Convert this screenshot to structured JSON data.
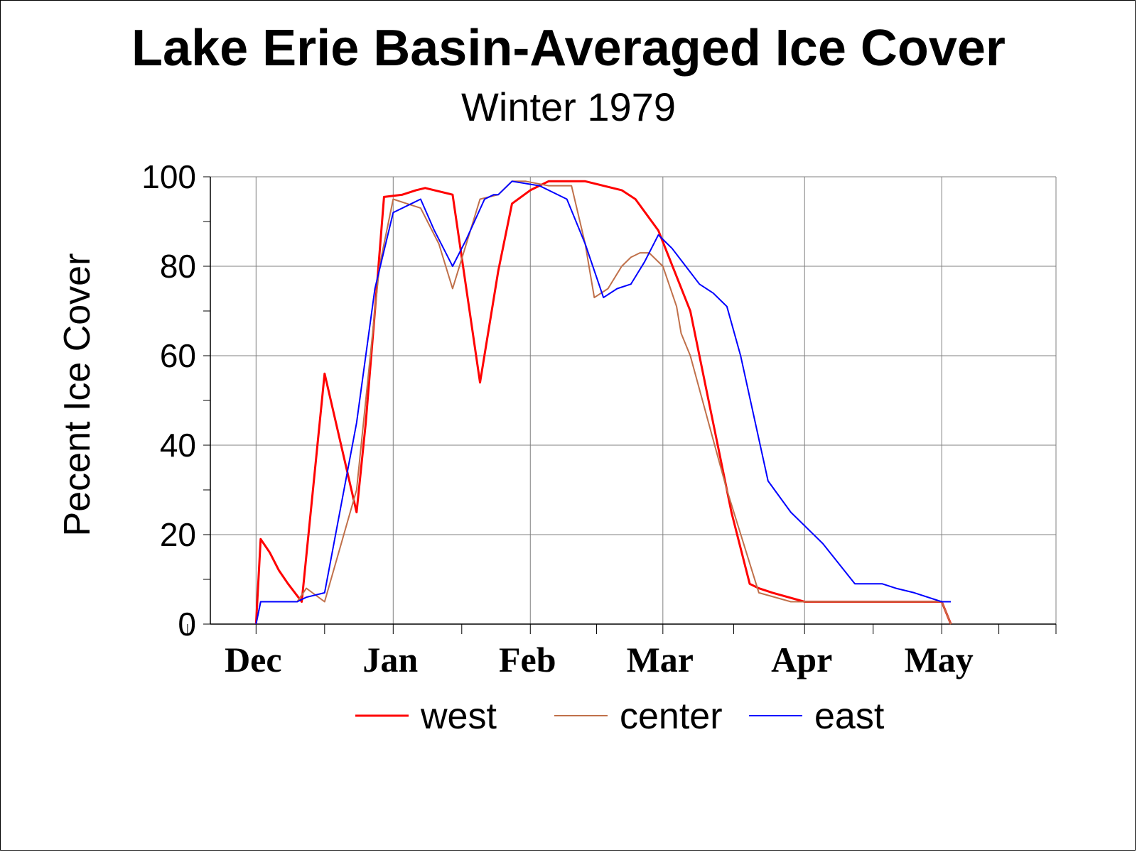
{
  "chart_data": {
    "type": "line",
    "title": "Lake Erie Basin-Averaged Ice Cover",
    "subtitle": "Winter 1979",
    "xlabel": "",
    "ylabel": "Pecent Ice Cover",
    "xlim": [
      -10,
      175
    ],
    "ylim": [
      0,
      100
    ],
    "y_ticks": [
      0,
      20,
      40,
      60,
      80,
      100
    ],
    "x_ticks": [
      {
        "label": "Dec",
        "x": 0
      },
      {
        "label": "Jan",
        "x": 30
      },
      {
        "label": "Feb",
        "x": 60
      },
      {
        "label": "Mar",
        "x": 89
      },
      {
        "label": "Apr",
        "x": 120
      },
      {
        "label": "May",
        "x": 150
      }
    ],
    "grid": true,
    "legend_position": "bottom",
    "series": [
      {
        "name": "west",
        "color": "#ff0000",
        "width": 3,
        "x": [
          0,
          1,
          3,
          5,
          7,
          10,
          15,
          22,
          24,
          26,
          28,
          32,
          35,
          37,
          43,
          49,
          53,
          56,
          60,
          64,
          69,
          72,
          80,
          83,
          88,
          95,
          99,
          101,
          104,
          108,
          110,
          113,
          120,
          126,
          135,
          140,
          150,
          152
        ],
        "y": [
          0,
          19,
          16,
          12,
          9,
          5,
          56,
          25,
          45,
          70,
          95.5,
          96,
          97,
          97.5,
          96,
          54,
          79,
          94,
          97,
          99,
          99,
          99,
          97,
          95,
          88,
          70,
          50,
          40,
          25,
          9,
          8,
          7,
          5,
          5,
          5,
          5,
          5,
          0
        ]
      },
      {
        "name": "center",
        "color": "#c0704a",
        "width": 2,
        "x": [
          0,
          1,
          5,
          9,
          11,
          15,
          22,
          24,
          27,
          30,
          33,
          36,
          40,
          43,
          46,
          49,
          53,
          56,
          59,
          64,
          69,
          72,
          74,
          77,
          80,
          82,
          84,
          86,
          89,
          92,
          93,
          95,
          99,
          103,
          110,
          117,
          120,
          125,
          130,
          135,
          140,
          145,
          150,
          152
        ],
        "y": [
          0,
          5,
          5,
          5,
          8,
          5,
          30,
          50,
          80,
          95,
          94,
          93,
          85,
          75,
          85,
          95,
          96,
          99,
          99,
          98,
          98,
          85,
          73,
          75,
          80,
          82,
          83,
          83,
          80,
          71,
          65,
          60,
          45,
          30,
          7,
          5,
          5,
          5,
          5,
          5,
          5,
          5,
          5,
          0
        ]
      },
      {
        "name": "east",
        "color": "#0000ff",
        "width": 2,
        "x": [
          0,
          1,
          5,
          9,
          11,
          15,
          22,
          24,
          26,
          30,
          34,
          36,
          39,
          41,
          43,
          46,
          50,
          52,
          53,
          56,
          62,
          68,
          72,
          76,
          79,
          82,
          85,
          88,
          91,
          94,
          97,
          100,
          103,
          106,
          112,
          117,
          124,
          131,
          137,
          140,
          144,
          150,
          152
        ],
        "y": [
          0,
          5,
          5,
          5,
          6,
          7,
          45,
          60,
          75,
          92,
          94,
          95,
          88,
          84,
          80,
          86,
          95,
          96,
          96,
          99,
          98,
          95,
          85,
          73,
          75,
          76,
          81,
          87,
          84,
          80,
          76,
          74,
          71,
          60,
          32,
          25,
          18,
          9,
          9,
          8,
          7,
          5,
          5
        ]
      }
    ]
  }
}
